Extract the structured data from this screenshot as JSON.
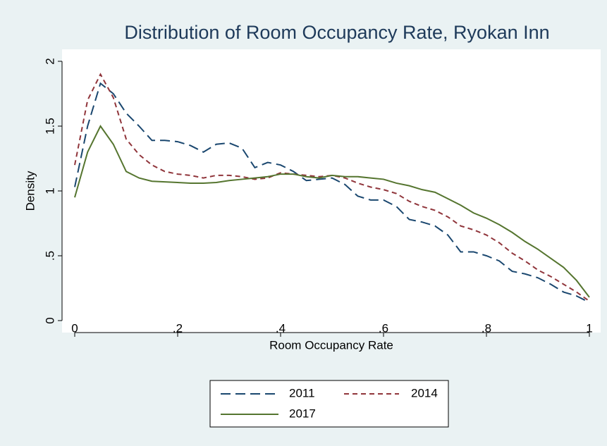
{
  "chart_data": {
    "type": "line",
    "title": "Distribution of Room Occupancy Rate, Ryokan Inn",
    "x_label": "Room Occupancy Rate",
    "y_label": "Density",
    "x": [
      0,
      0.025,
      0.05,
      0.075,
      0.1,
      0.125,
      0.15,
      0.175,
      0.2,
      0.225,
      0.25,
      0.275,
      0.3,
      0.325,
      0.35,
      0.375,
      0.4,
      0.425,
      0.45,
      0.475,
      0.5,
      0.525,
      0.55,
      0.575,
      0.6,
      0.625,
      0.65,
      0.675,
      0.7,
      0.725,
      0.75,
      0.775,
      0.8,
      0.825,
      0.85,
      0.875,
      0.9,
      0.925,
      0.95,
      0.975,
      1
    ],
    "series": [
      {
        "name": "2011",
        "color": "#1a476f",
        "dash": "long",
        "values": [
          1.03,
          1.5,
          1.83,
          1.75,
          1.6,
          1.5,
          1.39,
          1.39,
          1.38,
          1.35,
          1.3,
          1.36,
          1.37,
          1.33,
          1.18,
          1.22,
          1.2,
          1.15,
          1.08,
          1.09,
          1.1,
          1.05,
          0.96,
          0.93,
          0.93,
          0.88,
          0.78,
          0.76,
          0.73,
          0.66,
          0.53,
          0.53,
          0.5,
          0.46,
          0.38,
          0.36,
          0.33,
          0.28,
          0.22,
          0.19,
          0.14
        ]
      },
      {
        "name": "2014",
        "color": "#90353b",
        "dash": "short",
        "values": [
          1.2,
          1.7,
          1.9,
          1.72,
          1.4,
          1.28,
          1.2,
          1.15,
          1.13,
          1.12,
          1.1,
          1.12,
          1.12,
          1.11,
          1.09,
          1.1,
          1.14,
          1.13,
          1.12,
          1.11,
          1.12,
          1.1,
          1.06,
          1.03,
          1.01,
          0.98,
          0.92,
          0.88,
          0.85,
          0.8,
          0.73,
          0.7,
          0.66,
          0.6,
          0.52,
          0.46,
          0.39,
          0.34,
          0.28,
          0.22,
          0.15
        ]
      },
      {
        "name": "2017",
        "color": "#55752f",
        "dash": "solid",
        "values": [
          0.95,
          1.3,
          1.5,
          1.36,
          1.15,
          1.1,
          1.075,
          1.07,
          1.065,
          1.06,
          1.06,
          1.065,
          1.08,
          1.09,
          1.1,
          1.11,
          1.13,
          1.13,
          1.11,
          1.1,
          1.12,
          1.11,
          1.11,
          1.1,
          1.09,
          1.06,
          1.04,
          1.01,
          0.99,
          0.94,
          0.89,
          0.83,
          0.79,
          0.74,
          0.68,
          0.61,
          0.55,
          0.48,
          0.41,
          0.31,
          0.18
        ]
      }
    ],
    "xlim": [
      0,
      1
    ],
    "xticks": [
      0,
      {
        "value": 0.2,
        "label": ".2"
      },
      {
        "value": 0.4,
        "label": ".4"
      },
      {
        "value": 0.6,
        "label": ".6"
      },
      {
        "value": 0.8,
        "label": ".8"
      },
      1
    ],
    "ylim": [
      0,
      2
    ],
    "yticks": [
      0,
      {
        "value": 0.5,
        "label": ".5"
      },
      1,
      1.5,
      2
    ],
    "grid": false
  }
}
